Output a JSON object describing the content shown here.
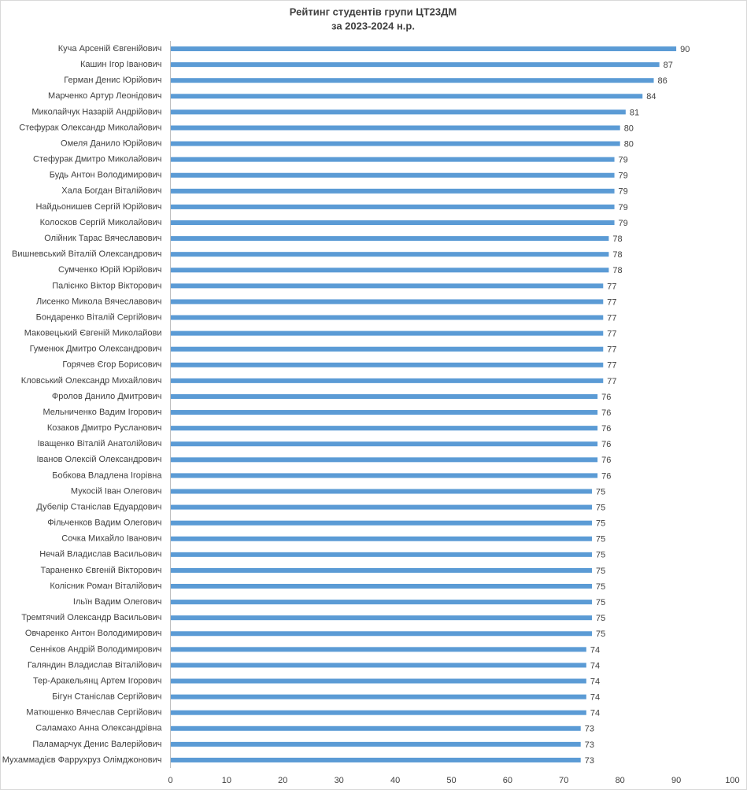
{
  "chart_data": {
    "type": "barh",
    "title": "Рейтинг студентів групи ЦТ23ДМ",
    "subtitle": "за 2023-2024 н.р.",
    "categories": [
      "Куча Арсеній Євгенійович",
      "Кашин Ігор Іванович",
      "Герман Денис Юрійович",
      "Марченко Артур Леонідович",
      "Миколайчук Назарій Андрійович",
      "Стефурак Олександр Миколайович",
      "Омеля Данило Юрійович",
      "Стефурак Дмитро Миколайович",
      "Будь Антон Володимирович",
      "Хала Богдан Віталійович",
      "Найдьонишев Сергій Юрійович",
      "Колосков Сергій Миколайович",
      "Олійник Тарас Вячеславович",
      "Вишневський Віталій Олександрович",
      "Сумченко Юрій Юрійович",
      "Палієнко Віктор Вікторович",
      "Лисенко Микола Вячеславович",
      "Бондаренко Віталій Сергійович",
      "Маковецький Євгеній Миколайови",
      "Гуменюк Дмитро Олександрович",
      "Горячев Єгор Борисович",
      "Кловський Олександр Михайлович",
      "Фролов Данило Дмитрович",
      "Мельниченко Вадим Ігорович",
      "Козаков Дмитро Русланович",
      "Іващенко Віталій Анатолійович",
      "Іванов Олексій Олександрович",
      "Бобкова Владлена Ігорівна",
      "Мукосій Іван Олегович",
      "Дубелір Станіслав Едуардович",
      "Фільченков Вадим Олегович",
      "Сочка Михайло Іванович",
      "Нечай Владислав Васильович",
      "Тараненко Євгеній Вікторович",
      "Колісник Роман Віталійович",
      "Ільїн Вадим Олегович",
      "Тремтячий Олександр Васильович",
      "Овчаренко Антон Володимирович",
      "Сенніков Андрій Володимирович",
      "Галяндин Владислав Віталійович",
      "Тер-Аракельянц Артем Ігорович",
      "Бігун Станіслав Сергійович",
      "Матюшенко Вячеслав Сергійович",
      "Саламахо Анна Олександрівна",
      "Паламарчук Денис Валерійович",
      "Мухаммадієв Фаррухруз Олімджонович"
    ],
    "values": [
      90,
      87,
      86,
      84,
      81,
      80,
      80,
      79,
      79,
      79,
      79,
      79,
      78,
      78,
      78,
      77,
      77,
      77,
      77,
      77,
      77,
      77,
      76,
      76,
      76,
      76,
      76,
      76,
      75,
      75,
      75,
      75,
      75,
      75,
      75,
      75,
      75,
      75,
      74,
      74,
      74,
      74,
      74,
      73,
      73,
      73
    ],
    "color": "#5b9bd5",
    "xlim": [
      0,
      100
    ],
    "xticks": [
      0,
      10,
      20,
      30,
      40,
      50,
      60,
      70,
      80,
      90,
      100
    ],
    "grid": false
  }
}
